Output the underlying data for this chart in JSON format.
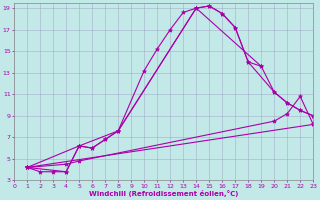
{
  "xlabel": "Windchill (Refroidissement éolien,°C)",
  "bg_color": "#c2e8e8",
  "line_color": "#aa00aa",
  "grid_color": "#9999bb",
  "xlim": [
    0,
    23
  ],
  "ylim": [
    3,
    19.5
  ],
  "xticks": [
    0,
    1,
    2,
    3,
    4,
    5,
    6,
    7,
    8,
    9,
    10,
    11,
    12,
    13,
    14,
    15,
    16,
    17,
    18,
    19,
    20,
    21,
    22,
    23
  ],
  "yticks": [
    3,
    5,
    7,
    9,
    11,
    13,
    15,
    17,
    19
  ],
  "curves": [
    {
      "x": [
        1,
        2,
        3,
        4,
        5,
        6,
        7,
        8,
        10,
        11,
        12,
        13,
        14,
        15,
        16,
        17,
        18,
        19
      ],
      "y": [
        4.2,
        3.8,
        3.8,
        3.8,
        6.2,
        6.0,
        6.8,
        7.6,
        13.2,
        15.2,
        17.0,
        18.6,
        19.0,
        19.2,
        18.5,
        17.2,
        14.0,
        13.6
      ]
    },
    {
      "x": [
        1,
        5,
        6,
        7,
        8,
        14,
        15,
        16,
        17,
        18,
        20,
        21,
        22,
        23
      ],
      "y": [
        4.2,
        6.2,
        6.0,
        6.8,
        7.6,
        19.0,
        19.2,
        18.5,
        17.2,
        14.0,
        11.2,
        10.2,
        9.5,
        9.0
      ]
    },
    {
      "x": [
        1,
        4,
        5,
        8,
        14,
        19,
        20,
        21,
        22,
        23
      ],
      "y": [
        4.2,
        3.8,
        6.2,
        7.6,
        19.0,
        13.6,
        11.2,
        10.2,
        9.5,
        9.0
      ]
    },
    {
      "x": [
        1,
        23
      ],
      "y": [
        4.2,
        8.2
      ]
    },
    {
      "x": [
        1,
        4,
        5,
        20,
        21,
        22,
        23
      ],
      "y": [
        4.2,
        4.5,
        4.8,
        8.5,
        9.2,
        10.8,
        8.2
      ]
    }
  ]
}
